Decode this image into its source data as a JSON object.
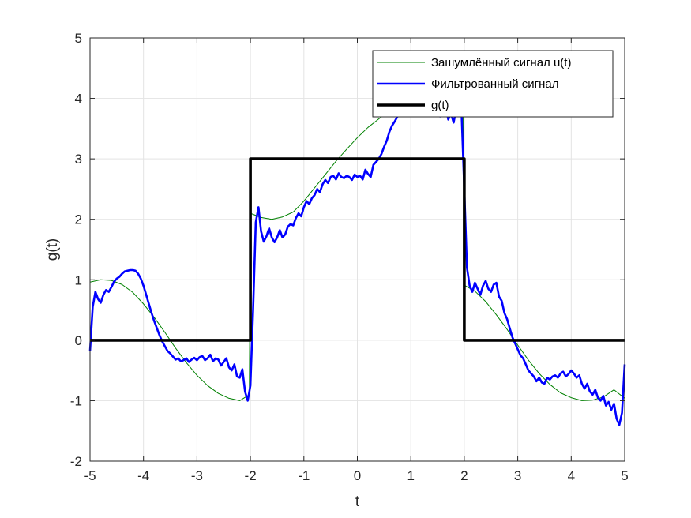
{
  "chart_data": {
    "type": "line",
    "xlabel": "t",
    "ylabel": "g(t)",
    "xlim": [
      -5,
      5
    ],
    "ylim": [
      -2,
      5
    ],
    "xticks": [
      -5,
      -4,
      -3,
      -2,
      -1,
      0,
      1,
      2,
      3,
      4,
      5
    ],
    "yticks": [
      -2,
      -1,
      0,
      1,
      2,
      3,
      4,
      5
    ],
    "grid": true,
    "legend_position": "top-right",
    "series": [
      {
        "name": "Зашумлённый сигнал u(t)",
        "color": "#008000",
        "x": [
          -5,
          -4.8,
          -4.6,
          -4.4,
          -4.2,
          -4,
          -3.8,
          -3.6,
          -3.4,
          -3.2,
          -3,
          -2.8,
          -2.6,
          -2.4,
          -2.2,
          -2.02,
          -2,
          -1.8,
          -1.6,
          -1.4,
          -1.2,
          -1,
          -0.8,
          -0.6,
          -0.4,
          -0.2,
          0,
          0.2,
          0.4,
          0.6,
          0.8,
          1,
          1.2,
          1.4,
          1.6,
          1.8,
          1.98,
          2,
          2.2,
          2.4,
          2.6,
          2.8,
          3,
          3.2,
          3.4,
          3.6,
          3.8,
          4,
          4.2,
          4.4,
          4.6,
          4.8,
          5
        ],
        "y": [
          0.96,
          1.0,
          0.99,
          0.92,
          0.79,
          0.6,
          0.38,
          0.13,
          -0.13,
          -0.37,
          -0.58,
          -0.75,
          -0.88,
          -0.96,
          -1.0,
          -0.9,
          2.1,
          2.03,
          2.0,
          2.04,
          2.12,
          2.3,
          2.52,
          2.74,
          2.96,
          3.16,
          3.35,
          3.52,
          3.66,
          3.79,
          3.89,
          3.96,
          4.0,
          4.0,
          3.98,
          3.94,
          3.91,
          0.91,
          0.81,
          0.64,
          0.42,
          0.18,
          -0.08,
          -0.33,
          -0.55,
          -0.73,
          -0.87,
          -0.95,
          -1.0,
          -0.99,
          -0.94,
          -0.82,
          -0.96
        ]
      },
      {
        "name": "Фильтрованный сигнал",
        "color": "#0000ff",
        "x": [
          -5,
          -4.95,
          -4.9,
          -4.85,
          -4.8,
          -4.75,
          -4.7,
          -4.65,
          -4.6,
          -4.55,
          -4.5,
          -4.45,
          -4.4,
          -4.35,
          -4.3,
          -4.25,
          -4.2,
          -4.15,
          -4.1,
          -4.05,
          -4,
          -3.95,
          -3.9,
          -3.85,
          -3.8,
          -3.75,
          -3.7,
          -3.65,
          -3.6,
          -3.55,
          -3.5,
          -3.45,
          -3.4,
          -3.35,
          -3.3,
          -3.25,
          -3.2,
          -3.15,
          -3.1,
          -3.05,
          -3,
          -2.95,
          -2.9,
          -2.85,
          -2.8,
          -2.75,
          -2.7,
          -2.65,
          -2.6,
          -2.55,
          -2.5,
          -2.45,
          -2.4,
          -2.35,
          -2.3,
          -2.25,
          -2.2,
          -2.15,
          -2.1,
          -2.05,
          -2,
          -1.95,
          -1.9,
          -1.85,
          -1.8,
          -1.75,
          -1.7,
          -1.65,
          -1.6,
          -1.55,
          -1.5,
          -1.45,
          -1.4,
          -1.35,
          -1.3,
          -1.25,
          -1.2,
          -1.15,
          -1.1,
          -1.05,
          -1,
          -0.95,
          -0.9,
          -0.85,
          -0.8,
          -0.75,
          -0.7,
          -0.65,
          -0.6,
          -0.55,
          -0.5,
          -0.45,
          -0.4,
          -0.35,
          -0.3,
          -0.25,
          -0.2,
          -0.15,
          -0.1,
          -0.05,
          0,
          0.05,
          0.1,
          0.15,
          0.2,
          0.25,
          0.3,
          0.35,
          0.4,
          0.45,
          0.5,
          0.55,
          0.6,
          0.65,
          0.7,
          0.75,
          0.8,
          0.85,
          0.9,
          0.95,
          1,
          1.05,
          1.1,
          1.15,
          1.2,
          1.25,
          1.3,
          1.35,
          1.4,
          1.45,
          1.5,
          1.55,
          1.6,
          1.65,
          1.7,
          1.75,
          1.8,
          1.85,
          1.9,
          1.95,
          2,
          2.05,
          2.1,
          2.15,
          2.2,
          2.25,
          2.3,
          2.35,
          2.4,
          2.45,
          2.5,
          2.55,
          2.6,
          2.65,
          2.7,
          2.75,
          2.8,
          2.85,
          2.9,
          2.95,
          3,
          3.05,
          3.1,
          3.15,
          3.2,
          3.25,
          3.3,
          3.35,
          3.4,
          3.45,
          3.5,
          3.55,
          3.6,
          3.65,
          3.7,
          3.75,
          3.8,
          3.85,
          3.9,
          3.95,
          4,
          4.05,
          4.1,
          4.15,
          4.2,
          4.25,
          4.3,
          4.35,
          4.4,
          4.45,
          4.5,
          4.55,
          4.6,
          4.65,
          4.7,
          4.75,
          4.8,
          4.85,
          4.9,
          4.95,
          5
        ],
        "y": [
          -0.18,
          0.55,
          0.8,
          0.68,
          0.62,
          0.75,
          0.83,
          0.8,
          0.88,
          0.97,
          1.02,
          1.05,
          1.1,
          1.14,
          1.15,
          1.16,
          1.16,
          1.15,
          1.1,
          1.02,
          0.9,
          0.75,
          0.6,
          0.45,
          0.32,
          0.2,
          0.08,
          -0.02,
          -0.1,
          -0.18,
          -0.22,
          -0.27,
          -0.32,
          -0.3,
          -0.35,
          -0.33,
          -0.3,
          -0.36,
          -0.32,
          -0.29,
          -0.33,
          -0.28,
          -0.26,
          -0.33,
          -0.3,
          -0.24,
          -0.35,
          -0.3,
          -0.32,
          -0.42,
          -0.36,
          -0.3,
          -0.45,
          -0.5,
          -0.4,
          -0.6,
          -0.62,
          -0.48,
          -0.85,
          -1.0,
          -0.75,
          0.5,
          1.95,
          2.2,
          1.8,
          1.63,
          1.72,
          1.85,
          1.7,
          1.62,
          1.7,
          1.82,
          1.7,
          1.75,
          1.88,
          1.92,
          1.9,
          2.02,
          2.1,
          2.05,
          2.2,
          2.3,
          2.25,
          2.35,
          2.4,
          2.5,
          2.45,
          2.58,
          2.65,
          2.6,
          2.7,
          2.72,
          2.66,
          2.76,
          2.7,
          2.68,
          2.72,
          2.7,
          2.65,
          2.74,
          2.7,
          2.72,
          2.66,
          2.82,
          2.75,
          2.7,
          2.9,
          2.95,
          3.0,
          3.08,
          3.2,
          3.3,
          3.45,
          3.55,
          3.62,
          3.7,
          3.82,
          3.85,
          3.95,
          3.98,
          4.0,
          4.1,
          4.05,
          4.15,
          4.12,
          4.05,
          4.08,
          4.1,
          3.85,
          3.9,
          3.98,
          3.7,
          3.8,
          3.88,
          3.65,
          3.75,
          3.6,
          3.82,
          3.95,
          3.75,
          2.5,
          1.2,
          0.9,
          0.8,
          0.95,
          0.85,
          0.75,
          0.9,
          0.98,
          0.85,
          0.8,
          0.92,
          0.95,
          0.72,
          0.65,
          0.45,
          0.35,
          0.2,
          0.05,
          -0.05,
          -0.15,
          -0.25,
          -0.3,
          -0.4,
          -0.5,
          -0.55,
          -0.6,
          -0.68,
          -0.62,
          -0.7,
          -0.72,
          -0.62,
          -0.65,
          -0.6,
          -0.58,
          -0.62,
          -0.55,
          -0.52,
          -0.6,
          -0.56,
          -0.5,
          -0.55,
          -0.62,
          -0.58,
          -0.72,
          -0.8,
          -0.72,
          -0.85,
          -0.9,
          -0.82,
          -0.95,
          -1.0,
          -0.92,
          -1.08,
          -1.02,
          -1.15,
          -1.05,
          -1.3,
          -1.4,
          -1.2,
          -0.4
        ]
      },
      {
        "name": "g(t)",
        "color": "#000000",
        "x": [
          -5,
          -2,
          -2,
          2,
          2,
          5
        ],
        "y": [
          0,
          0,
          3,
          3,
          0,
          0
        ]
      }
    ]
  }
}
